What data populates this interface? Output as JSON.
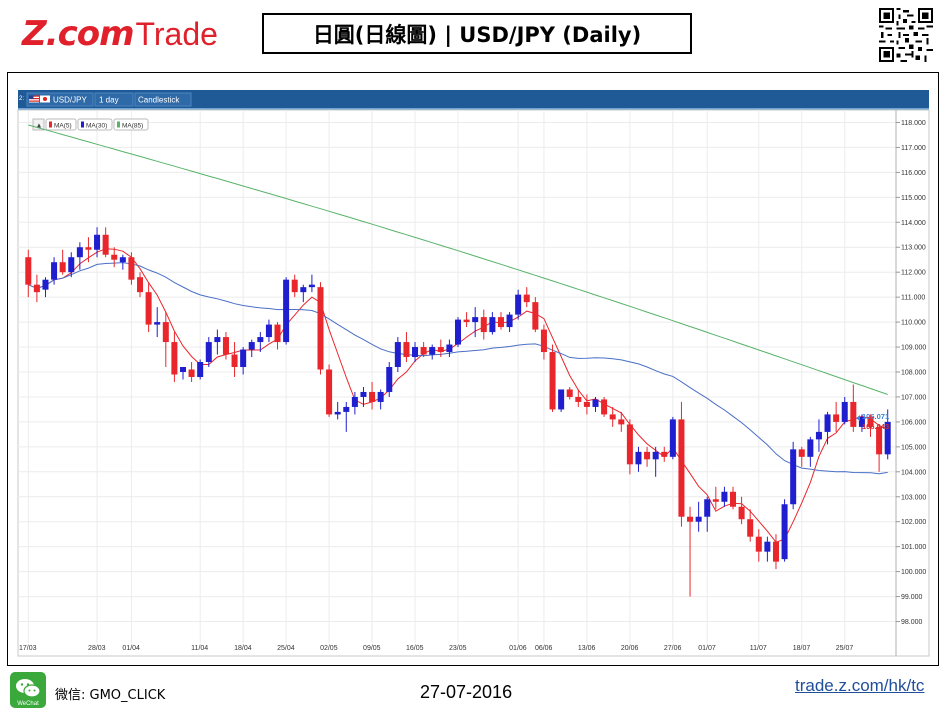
{
  "header": {
    "logo_text_z": "Z.com",
    "logo_text_trade": "Trade",
    "title": "日圓(日線圖) | USD/JPY (Daily)"
  },
  "toolbar": {
    "index": "2:",
    "symbol": "USD/JPY",
    "interval": "1 day",
    "chart_type": "Candlestick"
  },
  "legend": {
    "ma5": "MA(5)",
    "ma30": "MA(30)",
    "ma85": "MA(85)"
  },
  "footer": {
    "wechat_badge": "WeChat",
    "wechat_label": "微信: GMO_CLICK",
    "date": "27-07-2016",
    "link": "trade.z.com/hk/tc"
  },
  "colors": {
    "up": "#1f1fcf",
    "down": "#e8262b",
    "ma5": "#e8262b",
    "ma30": "#4a6fc7",
    "ma85": "#58b36a",
    "toolbar": "#1f5a96",
    "logo": "#e0202a"
  },
  "chart_data": {
    "type": "candlestick",
    "ylim": [
      97.5,
      118.5
    ],
    "y_ticks": [
      "118.000",
      "117.000",
      "116.000",
      "115.000",
      "114.000",
      "113.000",
      "112.000",
      "111.000",
      "110.000",
      "109.000",
      "108.000",
      "107.000",
      "106.000",
      "105.000",
      "104.000",
      "103.000",
      "102.000",
      "101.000",
      "100.000",
      "99.000",
      "98.000"
    ],
    "x_ticks": [
      {
        "i": 0,
        "label": "17/03"
      },
      {
        "i": 8,
        "label": "28/03"
      },
      {
        "i": 12,
        "label": "01/04"
      },
      {
        "i": 20,
        "label": "11/04"
      },
      {
        "i": 25,
        "label": "18/04"
      },
      {
        "i": 30,
        "label": "25/04"
      },
      {
        "i": 35,
        "label": "02/05"
      },
      {
        "i": 40,
        "label": "09/05"
      },
      {
        "i": 45,
        "label": "16/05"
      },
      {
        "i": 50,
        "label": "23/05"
      },
      {
        "i": 57,
        "label": "01/06"
      },
      {
        "i": 60,
        "label": "06/06"
      },
      {
        "i": 65,
        "label": "13/06"
      },
      {
        "i": 70,
        "label": "20/06"
      },
      {
        "i": 75,
        "label": "27/06"
      },
      {
        "i": 79,
        "label": "01/07"
      },
      {
        "i": 85,
        "label": "11/07"
      },
      {
        "i": 90,
        "label": "18/07"
      },
      {
        "i": 95,
        "label": "25/07"
      }
    ],
    "price_labels": {
      "ask": "106.071",
      "bid": "106.043"
    },
    "candles": [
      [
        112.6,
        112.9,
        111.0,
        111.5
      ],
      [
        111.5,
        111.9,
        110.8,
        111.2
      ],
      [
        111.3,
        111.8,
        111.0,
        111.7
      ],
      [
        111.7,
        112.6,
        111.5,
        112.4
      ],
      [
        112.4,
        112.9,
        111.9,
        112.0
      ],
      [
        112.0,
        112.8,
        111.8,
        112.6
      ],
      [
        112.6,
        113.2,
        112.1,
        113.0
      ],
      [
        113.0,
        113.4,
        112.4,
        112.9
      ],
      [
        112.9,
        113.8,
        112.6,
        113.5
      ],
      [
        113.5,
        113.8,
        112.6,
        112.7
      ],
      [
        112.7,
        113.0,
        112.2,
        112.5
      ],
      [
        112.4,
        112.7,
        112.1,
        112.6
      ],
      [
        112.6,
        112.8,
        111.5,
        111.7
      ],
      [
        111.8,
        112.0,
        111.0,
        111.2
      ],
      [
        111.2,
        111.6,
        109.6,
        109.9
      ],
      [
        109.9,
        110.6,
        109.4,
        110.0
      ],
      [
        110.0,
        110.4,
        108.2,
        109.2
      ],
      [
        109.2,
        109.6,
        107.6,
        107.9
      ],
      [
        108.0,
        108.2,
        107.7,
        108.2
      ],
      [
        108.1,
        108.4,
        107.6,
        107.8
      ],
      [
        107.8,
        108.5,
        107.7,
        108.4
      ],
      [
        108.4,
        109.4,
        108.2,
        109.2
      ],
      [
        109.2,
        109.7,
        108.7,
        109.4
      ],
      [
        109.4,
        109.6,
        108.5,
        108.7
      ],
      [
        108.7,
        109.2,
        107.8,
        108.2
      ],
      [
        108.2,
        109.0,
        107.9,
        108.9
      ],
      [
        108.9,
        109.3,
        108.6,
        109.2
      ],
      [
        109.2,
        109.6,
        108.8,
        109.4
      ],
      [
        109.4,
        110.1,
        109.2,
        109.9
      ],
      [
        109.9,
        110.0,
        108.9,
        109.2
      ],
      [
        109.2,
        111.8,
        109.1,
        111.7
      ],
      [
        111.7,
        111.9,
        111.0,
        111.2
      ],
      [
        111.2,
        111.5,
        110.8,
        111.4
      ],
      [
        111.4,
        111.9,
        111.2,
        111.5
      ],
      [
        111.4,
        111.6,
        107.9,
        108.1
      ],
      [
        108.1,
        108.3,
        106.2,
        106.3
      ],
      [
        106.3,
        106.8,
        106.1,
        106.4
      ],
      [
        106.4,
        106.8,
        105.6,
        106.6
      ],
      [
        106.6,
        107.2,
        106.3,
        107.0
      ],
      [
        107.0,
        107.4,
        106.6,
        107.2
      ],
      [
        107.2,
        107.6,
        106.5,
        106.8
      ],
      [
        106.8,
        107.3,
        106.5,
        107.2
      ],
      [
        107.2,
        108.4,
        107.0,
        108.2
      ],
      [
        108.2,
        109.4,
        108.0,
        109.2
      ],
      [
        109.2,
        109.6,
        108.4,
        108.6
      ],
      [
        108.6,
        109.2,
        108.4,
        109.0
      ],
      [
        109.0,
        109.2,
        108.6,
        108.7
      ],
      [
        108.7,
        109.1,
        108.5,
        109.0
      ],
      [
        109.0,
        109.3,
        108.6,
        108.8
      ],
      [
        108.8,
        109.3,
        108.6,
        109.1
      ],
      [
        109.1,
        110.2,
        109.0,
        110.1
      ],
      [
        110.1,
        110.4,
        109.8,
        110.0
      ],
      [
        110.0,
        110.6,
        109.4,
        110.2
      ],
      [
        110.2,
        110.5,
        109.3,
        109.6
      ],
      [
        109.6,
        110.4,
        109.5,
        110.2
      ],
      [
        110.2,
        110.4,
        109.7,
        109.8
      ],
      [
        109.8,
        110.4,
        109.6,
        110.3
      ],
      [
        110.3,
        111.3,
        110.1,
        111.1
      ],
      [
        111.1,
        111.4,
        110.6,
        110.8
      ],
      [
        110.8,
        111.0,
        109.6,
        109.7
      ],
      [
        109.7,
        109.9,
        108.5,
        108.8
      ],
      [
        108.8,
        109.1,
        106.4,
        106.5
      ],
      [
        106.5,
        107.2,
        106.4,
        107.3
      ],
      [
        107.3,
        107.4,
        106.9,
        107.0
      ],
      [
        107.0,
        107.3,
        106.6,
        106.8
      ],
      [
        106.8,
        107.1,
        106.3,
        106.6
      ],
      [
        106.6,
        107.0,
        106.4,
        106.9
      ],
      [
        106.9,
        107.0,
        106.2,
        106.3
      ],
      [
        106.3,
        106.6,
        105.8,
        106.1
      ],
      [
        106.1,
        106.4,
        105.6,
        105.9
      ],
      [
        105.9,
        106.1,
        103.9,
        104.3
      ],
      [
        104.3,
        105.0,
        104.0,
        104.8
      ],
      [
        104.8,
        105.0,
        104.2,
        104.5
      ],
      [
        104.5,
        105.0,
        103.8,
        104.8
      ],
      [
        104.8,
        105.0,
        104.4,
        104.6
      ],
      [
        104.6,
        106.2,
        104.5,
        106.1
      ],
      [
        106.1,
        106.8,
        101.8,
        102.2
      ],
      [
        102.2,
        102.6,
        99.0,
        102.0
      ],
      [
        102.0,
        102.8,
        101.6,
        102.2
      ],
      [
        102.2,
        103.0,
        101.6,
        102.9
      ],
      [
        102.9,
        103.4,
        102.5,
        102.8
      ],
      [
        102.8,
        103.4,
        102.6,
        103.2
      ],
      [
        103.2,
        103.4,
        102.5,
        102.6
      ],
      [
        102.6,
        103.0,
        101.9,
        102.1
      ],
      [
        102.1,
        102.5,
        101.2,
        101.4
      ],
      [
        101.4,
        101.7,
        100.4,
        100.8
      ],
      [
        100.8,
        101.4,
        100.4,
        101.2
      ],
      [
        101.2,
        101.5,
        100.1,
        100.4
      ],
      [
        100.5,
        102.9,
        100.4,
        102.7
      ],
      [
        102.7,
        105.2,
        102.5,
        104.9
      ],
      [
        104.9,
        105.0,
        104.2,
        104.6
      ],
      [
        104.6,
        105.4,
        104.2,
        105.3
      ],
      [
        105.3,
        106.1,
        104.8,
        105.6
      ],
      [
        105.6,
        106.4,
        105.1,
        106.3
      ],
      [
        106.3,
        106.8,
        105.6,
        106.0
      ],
      [
        106.0,
        107.0,
        105.9,
        106.8
      ],
      [
        106.8,
        107.5,
        105.6,
        105.8
      ],
      [
        105.8,
        106.3,
        105.6,
        106.2
      ],
      [
        106.2,
        106.3,
        105.4,
        105.8
      ],
      [
        105.8,
        105.9,
        104.0,
        104.7
      ],
      [
        104.7,
        106.5,
        104.5,
        106.0
      ]
    ]
  }
}
